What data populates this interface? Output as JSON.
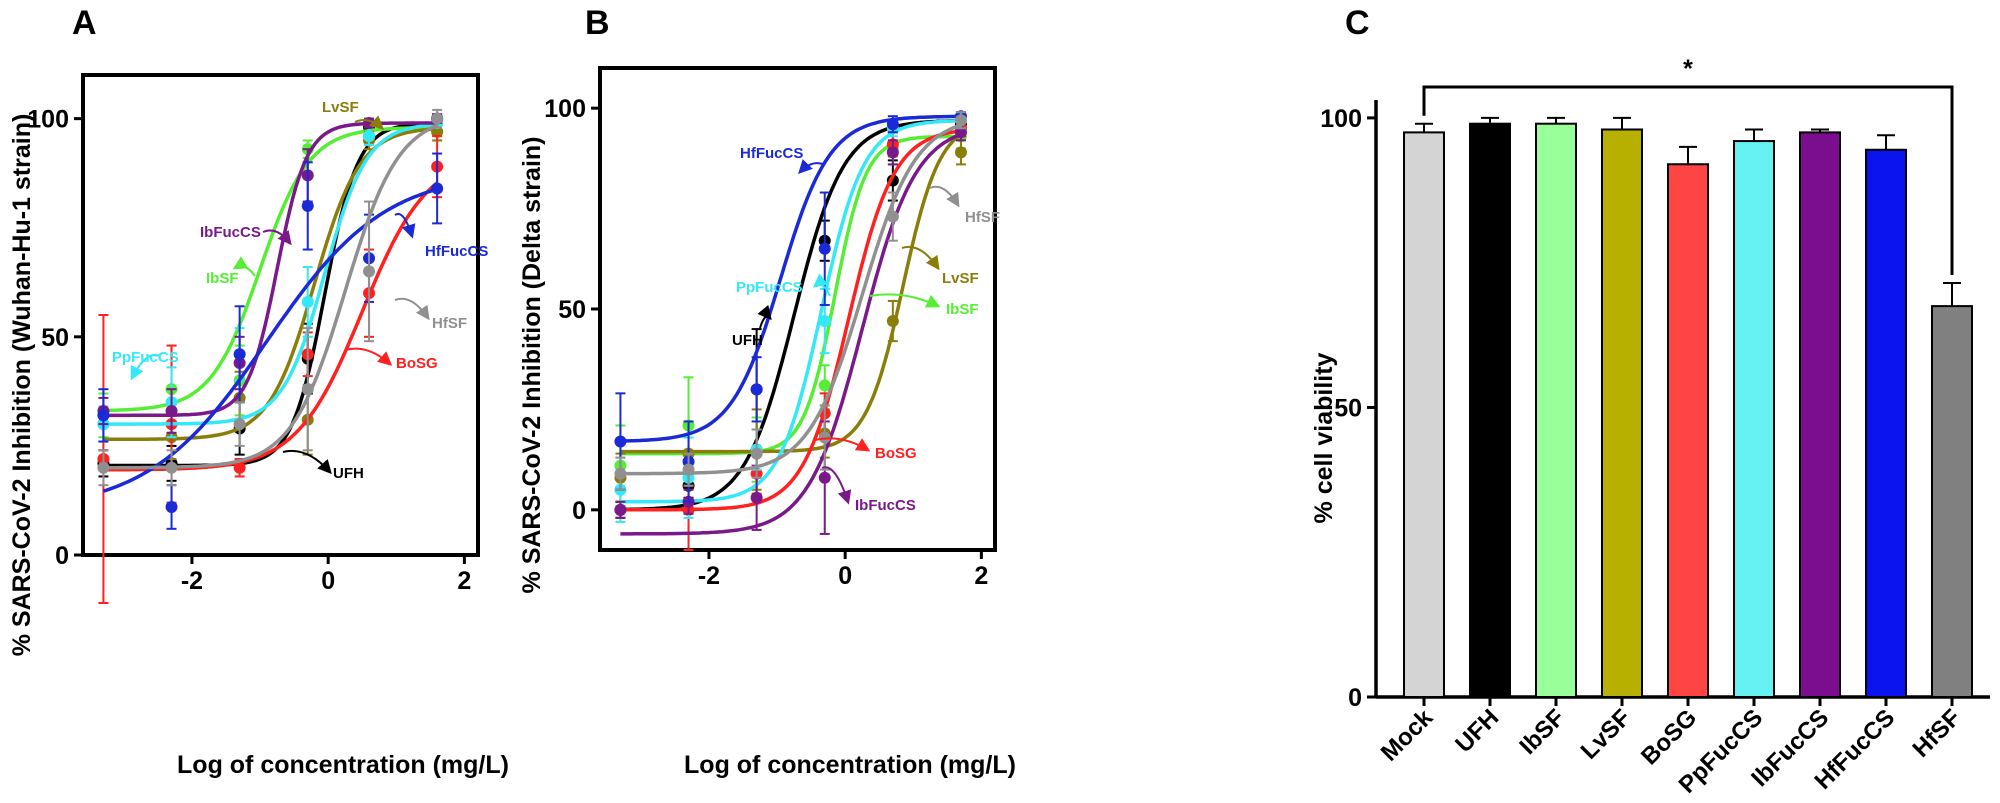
{
  "chart_data": [
    {
      "panel": "A",
      "type": "scatter",
      "xlabel": "Log of concentration (mg/L)",
      "ylabel": "% SARS-CoV-2 Inhibition (Wuhan-Hu-1  strain)",
      "xlim": [
        -3.6,
        2.2
      ],
      "ylim": [
        0,
        110
      ],
      "xticks": [
        -2,
        0,
        2
      ],
      "yticks": [
        0,
        50,
        100
      ],
      "x": [
        -3.3,
        -2.3,
        -1.3,
        -0.3,
        0.6,
        1.6
      ],
      "series": [
        {
          "name": "UFH",
          "color": "#000000",
          "y": [
            21,
            21,
            29,
            45,
            98,
            100
          ],
          "err": [
            3,
            4,
            6,
            8,
            1,
            1
          ],
          "fit": {
            "bottom": 20.5,
            "top": 99,
            "ec50": -0.05,
            "hill": 1.8
          }
        },
        {
          "name": "IbSF",
          "color": "#55ee33",
          "y": [
            32,
            38,
            40,
            93,
            96,
            97
          ],
          "err": [
            5,
            10,
            8,
            2,
            2,
            2
          ],
          "fit": {
            "bottom": 33,
            "top": 98,
            "ec50": -1.0,
            "hill": 1.2
          }
        },
        {
          "name": "LvSF",
          "color": "#8b7d0a",
          "y": [
            30,
            27,
            36,
            31,
            95,
            97
          ],
          "err": [
            4,
            5,
            6,
            8,
            2,
            2
          ],
          "fit": {
            "bottom": 26.5,
            "top": 98,
            "ec50": -0.2,
            "hill": 1.3
          }
        },
        {
          "name": "BoSG",
          "color": "#ff2020",
          "y": [
            22,
            30,
            20,
            46,
            60,
            89
          ],
          "err": [
            33,
            18,
            2,
            5,
            10,
            7
          ],
          "fit": {
            "bottom": 19.5,
            "top": 92,
            "ec50": 0.5,
            "hill": 0.9
          }
        },
        {
          "name": "PpFucCS",
          "color": "#33e8f8",
          "y": [
            30,
            35,
            46,
            58,
            96,
            99
          ],
          "err": [
            4,
            8,
            6,
            8,
            2,
            1
          ],
          "fit": {
            "bottom": 30,
            "top": 99,
            "ec50": -0.05,
            "hill": 1.4
          }
        },
        {
          "name": "IbFucCS",
          "color": "#7a1a8a",
          "y": [
            33,
            33,
            44,
            87,
            99,
            100
          ],
          "err": [
            3,
            5,
            6,
            6,
            1,
            1
          ],
          "fit": {
            "bottom": 32,
            "top": 99,
            "ec50": -0.75,
            "hill": 2.0
          }
        },
        {
          "name": "HfFucCS",
          "color": "#1a2ad6",
          "y": [
            32,
            11,
            46,
            80,
            68,
            84
          ],
          "err": [
            6,
            5,
            11,
            10,
            10,
            8
          ],
          "fit": {
            "bottom": 10,
            "top": 88,
            "ec50": -0.9,
            "hill": 0.5
          }
        },
        {
          "name": "HfSF",
          "color": "#909090",
          "y": [
            20,
            20,
            30,
            38,
            65,
            100
          ],
          "err": [
            4,
            4,
            5,
            14,
            16,
            2
          ],
          "fit": {
            "bottom": 20,
            "top": 101,
            "ec50": 0.25,
            "hill": 1.1
          }
        }
      ],
      "annotations": [
        {
          "label": "LvSF",
          "color": "#8b7d0a"
        },
        {
          "label": "IbFucCS",
          "color": "#7a1a8a"
        },
        {
          "label": "HfFucCS",
          "color": "#1a2ad6"
        },
        {
          "label": "IbSF",
          "color": "#55ee33"
        },
        {
          "label": "HfSF",
          "color": "#909090"
        },
        {
          "label": "PpFucCS",
          "color": "#33e8f8"
        },
        {
          "label": "BoSG",
          "color": "#ff2020"
        },
        {
          "label": "UFH",
          "color": "#000000"
        }
      ]
    },
    {
      "panel": "B",
      "type": "scatter",
      "xlabel": "Log of concentration (mg/L)",
      "ylabel": "% SARS-CoV-2 Inhibition (Delta strain)",
      "xlim": [
        -3.6,
        2.2
      ],
      "ylim": [
        -10,
        110
      ],
      "xticks": [
        -2,
        0,
        2
      ],
      "yticks": [
        0,
        50,
        100
      ],
      "x": [
        -3.3,
        -2.3,
        -1.3,
        -0.3,
        0.7,
        1.7
      ],
      "series": [
        {
          "name": "UFH",
          "color": "#000000",
          "y": [
            0,
            6,
            30,
            67,
            82,
            96
          ],
          "err": [
            2,
            3,
            15,
            5,
            5,
            2
          ],
          "fit": {
            "bottom": 0,
            "top": 97,
            "ec50": -0.75,
            "hill": 1.2
          }
        },
        {
          "name": "IbSF",
          "color": "#55ee33",
          "y": [
            11,
            21,
            15,
            31,
            90,
            93
          ],
          "err": [
            10,
            12,
            8,
            5,
            4,
            3
          ],
          "fit": {
            "bottom": 14,
            "top": 93,
            "ec50": -0.15,
            "hill": 1.9
          }
        },
        {
          "name": "LvSF",
          "color": "#8b7d0a",
          "y": [
            8,
            14,
            15,
            19,
            47,
            89
          ],
          "err": [
            6,
            8,
            10,
            6,
            5,
            3
          ],
          "fit": {
            "bottom": 14.5,
            "top": 97,
            "ec50": 0.85,
            "hill": 1.6
          }
        },
        {
          "name": "BoSG",
          "color": "#ff2020",
          "y": [
            0,
            0,
            9,
            24,
            91,
            95
          ],
          "err": [
            2,
            10,
            5,
            5,
            3,
            2
          ],
          "fit": {
            "bottom": 0,
            "top": 95,
            "ec50": 0.05,
            "hill": 1.3
          }
        },
        {
          "name": "PpFucCS",
          "color": "#33e8f8",
          "y": [
            5,
            8,
            15,
            47,
            95,
            97
          ],
          "err": [
            8,
            10,
            5,
            8,
            2,
            2
          ],
          "fit": {
            "bottom": 2,
            "top": 97,
            "ec50": -0.35,
            "hill": 1.4
          }
        },
        {
          "name": "IbFucCS",
          "color": "#7a1a8a",
          "y": [
            0,
            2,
            3,
            8,
            89,
            94
          ],
          "err": [
            2,
            3,
            8,
            14,
            3,
            2
          ],
          "fit": {
            "bottom": -6,
            "top": 96,
            "ec50": 0.25,
            "hill": 1.1
          }
        },
        {
          "name": "HfFucCS",
          "color": "#1a2ad6",
          "y": [
            17,
            12,
            30,
            65,
            96,
            98
          ],
          "err": [
            12,
            10,
            8,
            14,
            2,
            1
          ],
          "fit": {
            "bottom": 17,
            "top": 98,
            "ec50": -0.95,
            "hill": 1.2
          }
        },
        {
          "name": "HfSF",
          "color": "#909090",
          "y": [
            9,
            10,
            14,
            18,
            73,
            97
          ],
          "err": [
            4,
            4,
            6,
            8,
            6,
            2
          ],
          "fit": {
            "bottom": 9,
            "top": 98,
            "ec50": 0.25,
            "hill": 1.1
          }
        }
      ],
      "annotations": [
        {
          "label": "HfFucCS",
          "color": "#1a2ad6"
        },
        {
          "label": "HfSF",
          "color": "#909090"
        },
        {
          "label": "PpFucCS",
          "color": "#33e8f8"
        },
        {
          "label": "LvSF",
          "color": "#8b7d0a"
        },
        {
          "label": "UFH",
          "color": "#000000"
        },
        {
          "label": "IbSF",
          "color": "#55ee33"
        },
        {
          "label": "BoSG",
          "color": "#ff2020"
        },
        {
          "label": "IbFucCS",
          "color": "#7a1a8a"
        }
      ]
    },
    {
      "panel": "C",
      "type": "bar",
      "xlabel": "",
      "ylabel": "% cell viability",
      "ylim": [
        0,
        110
      ],
      "yticks": [
        0,
        50,
        100
      ],
      "categories": [
        "Mock",
        "UFH",
        "IbSF",
        "LvSF",
        "BoSG",
        "PpFucCS",
        "IbFucCS",
        "HfFucCS",
        "HfSF"
      ],
      "values": [
        97.5,
        99,
        99,
        98,
        92,
        96,
        97.5,
        94.5,
        67.5
      ],
      "errors": [
        1.5,
        1,
        1,
        2,
        3,
        2,
        0.5,
        2.5,
        4
      ],
      "colors": [
        "#d4d4d4",
        "#000000",
        "#99ff99",
        "#b8b000",
        "#ff4444",
        "#66f2f2",
        "#7a0e8e",
        "#0a14ee",
        "#808080"
      ],
      "significance": {
        "from": "Mock",
        "to": "HfSF",
        "marker": "*"
      }
    }
  ]
}
